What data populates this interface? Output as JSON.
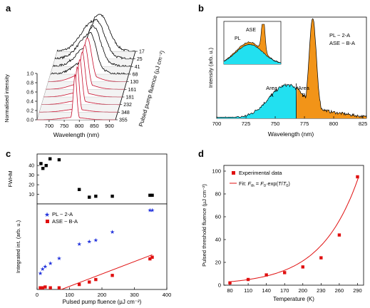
{
  "colors": {
    "spectra_red": "#c8102e",
    "asymptote_blue": "#1a1aff",
    "pl_fill": "#22e0f0",
    "ase_fill": "#f29418",
    "fwhm_marker": "#000000",
    "pl_marker": "#2233dd",
    "ase_marker": "#e01010",
    "fit_line": "#e01010"
  },
  "chart_data": [
    {
      "panel": "a",
      "type": "line",
      "subtype": "3d-waterfall",
      "xlabel": "Wavelength (nm)",
      "ylabel": "Normalised intensity",
      "zlabel": "Pulsed pump fluence (µJ cm⁻²)",
      "xticks": [
        "700",
        "750",
        "800",
        "850",
        "900"
      ],
      "yticks": [
        "0.0",
        "0.2",
        "0.4",
        "0.6",
        "0.8",
        "1.0"
      ],
      "fluence_labels": [
        "355",
        "348",
        "232",
        "181",
        "161",
        "130",
        "68",
        "41",
        "25",
        "17"
      ],
      "xlim": [
        660,
        920
      ],
      "ylim": [
        0,
        1
      ],
      "series_peaks": [
        {
          "fluence": 355,
          "peak_nm": 786,
          "width_nm": 8,
          "pl_level": 0.05
        },
        {
          "fluence": 348,
          "peak_nm": 786,
          "width_nm": 9,
          "pl_level": 0.06
        },
        {
          "fluence": 232,
          "peak_nm": 787,
          "width_nm": 11,
          "pl_level": 0.08
        },
        {
          "fluence": 181,
          "peak_nm": 788,
          "width_nm": 13,
          "pl_level": 0.1
        },
        {
          "fluence": 161,
          "peak_nm": 789,
          "width_nm": 16,
          "pl_level": 0.13
        },
        {
          "fluence": 130,
          "peak_nm": 790,
          "width_nm": 20,
          "pl_level": 0.18
        },
        {
          "fluence": 68,
          "peak_nm": 792,
          "width_nm": 28,
          "pl_level": 0.3
        },
        {
          "fluence": 41,
          "peak_nm": 795,
          "width_nm": 35,
          "pl_level": 0.45
        },
        {
          "fluence": 25,
          "peak_nm": 797,
          "width_nm": 40,
          "pl_level": 0.55
        },
        {
          "fluence": 17,
          "peak_nm": 800,
          "width_nm": 45,
          "pl_level": 0.65
        }
      ]
    },
    {
      "panel": "b",
      "type": "area",
      "xlabel": "Wavelength (nm)",
      "ylabel": "Intensity (arb. u.)",
      "xticks": [
        "700",
        "725",
        "750",
        "775",
        "800",
        "825"
      ],
      "xlim": [
        700,
        828
      ],
      "split_nm": 768,
      "annotations": [
        "PL ~ 2-A",
        "ASE ~ B-A",
        "Area A",
        "Area B"
      ],
      "inset_labels": [
        "PL",
        "ASE"
      ],
      "peaks": [
        {
          "center_nm": 782,
          "height": 1.0,
          "width_nm": 4.5
        },
        {
          "center_nm": 769,
          "height": 0.3,
          "width_nm": 4
        }
      ],
      "broad_band": {
        "center_nm": 760,
        "height": 0.34,
        "width_nm": 22
      }
    },
    {
      "panel": "c-top",
      "type": "scatter",
      "ylabel": "FWHM",
      "yticks": [
        "10",
        "20",
        "30",
        "40"
      ],
      "ylim": [
        0,
        52
      ],
      "xlim": [
        0,
        400
      ],
      "points": [
        [
          12,
          42
        ],
        [
          18,
          37
        ],
        [
          28,
          40
        ],
        [
          40,
          47
        ],
        [
          68,
          46
        ],
        [
          130,
          15
        ],
        [
          161,
          7
        ],
        [
          181,
          8
        ],
        [
          232,
          8
        ],
        [
          348,
          9
        ],
        [
          355,
          9
        ]
      ]
    },
    {
      "panel": "c-bottom",
      "type": "scatter",
      "xlabel": "Pulsed pump fluence (µJ cm⁻²)",
      "ylabel": "Integrated int. (arb. u.)",
      "xticks": [
        "0",
        "100",
        "200",
        "300",
        "400"
      ],
      "xlim": [
        0,
        400
      ],
      "ylim": [
        0,
        1
      ],
      "series": [
        {
          "name": "PL ~ 2-A",
          "marker": "star",
          "points": [
            [
              10,
              0.2
            ],
            [
              17,
              0.25
            ],
            [
              25,
              0.28
            ],
            [
              41,
              0.32
            ],
            [
              68,
              0.38
            ],
            [
              130,
              0.55
            ],
            [
              161,
              0.58
            ],
            [
              181,
              0.6
            ],
            [
              232,
              0.7
            ],
            [
              348,
              0.96
            ],
            [
              355,
              0.96
            ]
          ]
        },
        {
          "name": "ASE ~ B-A",
          "marker": "square",
          "points": [
            [
              10,
              0.02
            ],
            [
              17,
              0.02
            ],
            [
              25,
              0.03
            ],
            [
              41,
              0.02
            ],
            [
              68,
              0.02
            ],
            [
              130,
              0.06
            ],
            [
              161,
              0.09
            ],
            [
              181,
              0.12
            ],
            [
              232,
              0.17
            ],
            [
              348,
              0.37
            ],
            [
              355,
              0.39
            ]
          ]
        }
      ],
      "fit_line": [
        [
          75,
          0.0
        ],
        [
          355,
          0.42
        ]
      ]
    },
    {
      "panel": "d",
      "type": "scatter",
      "xlabel": "Temperature (K)",
      "ylabel": "Pulsed threshold fluence (µJ cm⁻²)",
      "xticks": [
        "80",
        "110",
        "140",
        "170",
        "200",
        "230",
        "260",
        "290"
      ],
      "yticks": [
        "0",
        "20",
        "40",
        "60",
        "80",
        "100"
      ],
      "xlim": [
        70,
        300
      ],
      "ylim": [
        0,
        105
      ],
      "series": [
        {
          "name": "Experimental data",
          "marker": "square",
          "points": [
            [
              80,
              2
            ],
            [
              110,
              5
            ],
            [
              140,
              9
            ],
            [
              170,
              11
            ],
            [
              200,
              16
            ],
            [
              230,
              24
            ],
            [
              260,
              44
            ],
            [
              290,
              95
            ]
          ]
        }
      ],
      "fit": {
        "name": "Fit: F_th = F_0·exp(T/T_0)",
        "F0": 0.82,
        "T0": 61.4
      }
    }
  ],
  "panels": {
    "a": {
      "letter": "a",
      "xlabel": "Wavelength (nm)",
      "ylabel": "Normalised intensity",
      "zlabel": "Pulsed pump fluence (µJ cm⁻²)",
      "xticks": [
        "700",
        "750",
        "800",
        "850",
        "900"
      ],
      "yticks": [
        "0.0",
        "0.2",
        "0.4",
        "0.6",
        "0.8",
        "1.0"
      ],
      "fluences": [
        "355",
        "348",
        "232",
        "181",
        "161",
        "130",
        "68",
        "41",
        "25",
        "17"
      ]
    },
    "b": {
      "letter": "b",
      "xlabel": "Wavelength (nm)",
      "ylabel": "Intensity (arb. u.)",
      "xticks": [
        "700",
        "725",
        "750",
        "775",
        "800",
        "825"
      ],
      "pl_eq": "PL ~ 2-A",
      "ase_eq": "ASE ~ B-A",
      "area_a": [
        "Area",
        "A"
      ],
      "area_b": [
        "Area",
        "B"
      ],
      "inset_pl": "PL",
      "inset_ase": "ASE"
    },
    "c": {
      "letter": "c",
      "top_ylabel": "FWHM",
      "top_yticks": [
        "10",
        "20",
        "30",
        "40"
      ],
      "bottom_ylabel": "Integrated int. (arb. u.)",
      "xlabel": "Pulsed pump fluence (µJ cm⁻²)",
      "xticks": [
        "0",
        "100",
        "200",
        "300",
        "400"
      ],
      "legend_pl": "PL ~ 2-A",
      "legend_ase": "ASE ~ B-A"
    },
    "d": {
      "letter": "d",
      "xlabel": "Temperature (K)",
      "ylabel": "Pulsed threshold fluence (µJ cm⁻²)",
      "xticks": [
        "80",
        "110",
        "140",
        "170",
        "200",
        "230",
        "260",
        "290"
      ],
      "yticks": [
        "0",
        "20",
        "40",
        "60",
        "80",
        "100"
      ],
      "legend_data": "Experimental data",
      "legend_fit_prefix": "Fit: ",
      "legend_fit_F": "F",
      "legend_fit_th": "th",
      "legend_fit_mid": " = ",
      "legend_fit_F0": "F",
      "legend_fit_0": "0",
      "legend_fit_exp": "·exp(",
      "legend_fit_T": "T",
      "legend_fit_slash": "/",
      "legend_fit_T0": "T",
      "legend_fit_00": "0",
      "legend_fit_close": ")"
    }
  }
}
